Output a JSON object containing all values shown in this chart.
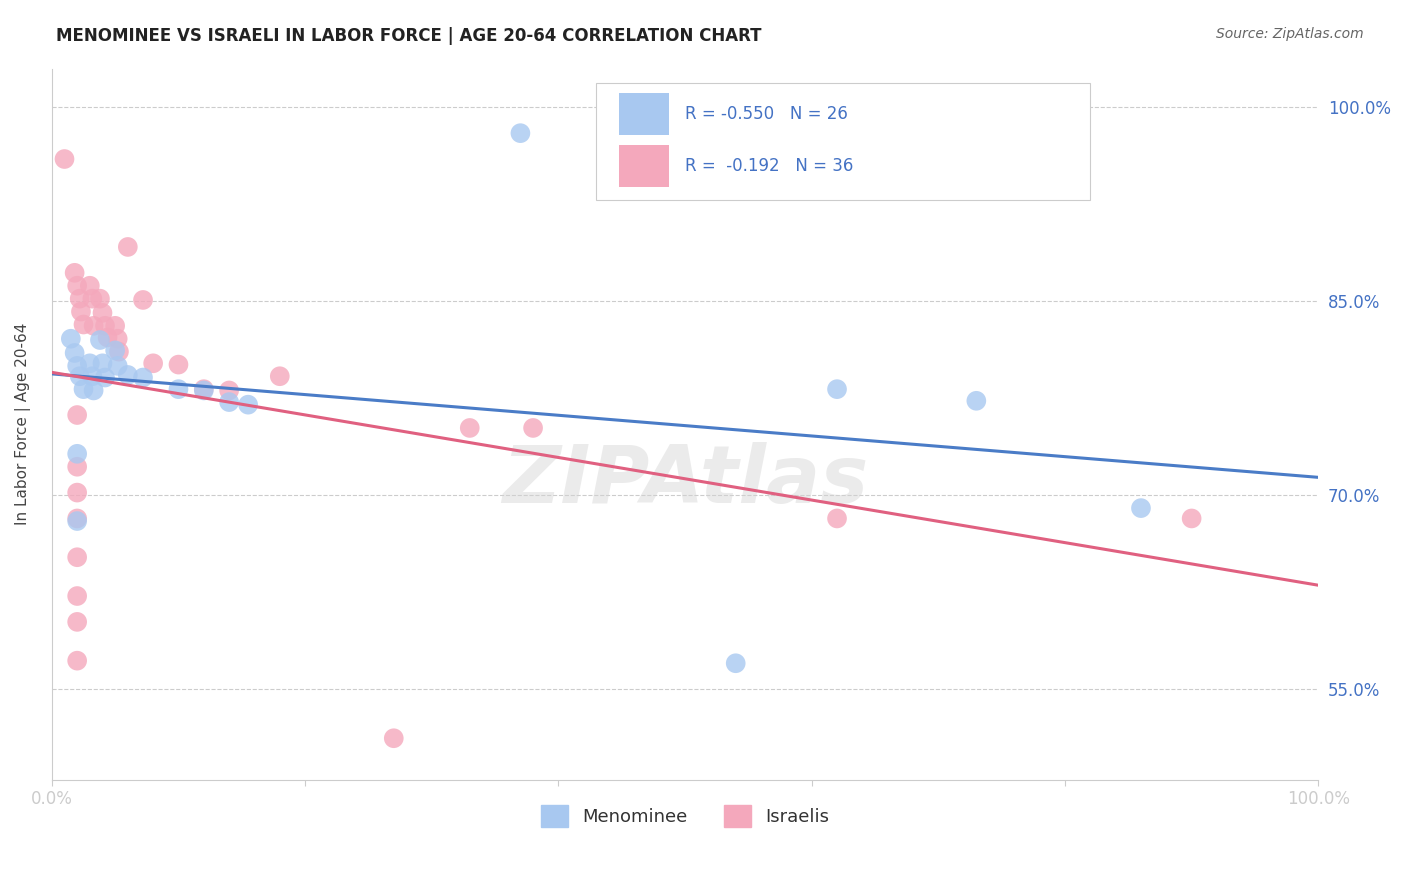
{
  "title": "MENOMINEE VS ISRAELI IN LABOR FORCE | AGE 20-64 CORRELATION CHART",
  "source": "Source: ZipAtlas.com",
  "ylabel": "In Labor Force | Age 20-64",
  "xlim": [
    0.0,
    1.0
  ],
  "ylim": [
    0.48,
    1.03
  ],
  "ytick_labels": [
    "55.0%",
    "70.0%",
    "85.0%",
    "100.0%"
  ],
  "ytick_values": [
    0.55,
    0.7,
    0.85,
    1.0
  ],
  "legend_labels": [
    "Menominee",
    "Israelis"
  ],
  "blue_R": "-0.550",
  "blue_N": "26",
  "pink_R": "-0.192",
  "pink_N": "36",
  "blue_color": "#A8C8F0",
  "pink_color": "#F4A8BC",
  "blue_line_color": "#4A7CC7",
  "pink_line_color": "#E06080",
  "watermark": "ZIPAtlas",
  "blue_points": [
    [
      0.015,
      0.821
    ],
    [
      0.018,
      0.81
    ],
    [
      0.02,
      0.8
    ],
    [
      0.022,
      0.792
    ],
    [
      0.025,
      0.782
    ],
    [
      0.03,
      0.802
    ],
    [
      0.032,
      0.792
    ],
    [
      0.033,
      0.781
    ],
    [
      0.038,
      0.82
    ],
    [
      0.04,
      0.802
    ],
    [
      0.042,
      0.791
    ],
    [
      0.05,
      0.812
    ],
    [
      0.052,
      0.8
    ],
    [
      0.06,
      0.793
    ],
    [
      0.072,
      0.791
    ],
    [
      0.1,
      0.782
    ],
    [
      0.12,
      0.781
    ],
    [
      0.14,
      0.772
    ],
    [
      0.155,
      0.77
    ],
    [
      0.02,
      0.732
    ],
    [
      0.02,
      0.68
    ],
    [
      0.37,
      0.98
    ],
    [
      0.62,
      0.782
    ],
    [
      0.73,
      0.773
    ],
    [
      0.86,
      0.69
    ],
    [
      0.54,
      0.57
    ]
  ],
  "pink_points": [
    [
      0.01,
      0.96
    ],
    [
      0.06,
      0.892
    ],
    [
      0.018,
      0.872
    ],
    [
      0.02,
      0.862
    ],
    [
      0.022,
      0.852
    ],
    [
      0.023,
      0.842
    ],
    [
      0.025,
      0.832
    ],
    [
      0.03,
      0.862
    ],
    [
      0.032,
      0.852
    ],
    [
      0.033,
      0.831
    ],
    [
      0.038,
      0.852
    ],
    [
      0.04,
      0.841
    ],
    [
      0.042,
      0.831
    ],
    [
      0.044,
      0.822
    ],
    [
      0.05,
      0.831
    ],
    [
      0.052,
      0.821
    ],
    [
      0.053,
      0.811
    ],
    [
      0.072,
      0.851
    ],
    [
      0.08,
      0.802
    ],
    [
      0.1,
      0.801
    ],
    [
      0.12,
      0.782
    ],
    [
      0.14,
      0.781
    ],
    [
      0.02,
      0.762
    ],
    [
      0.02,
      0.722
    ],
    [
      0.02,
      0.702
    ],
    [
      0.02,
      0.682
    ],
    [
      0.02,
      0.652
    ],
    [
      0.02,
      0.622
    ],
    [
      0.33,
      0.752
    ],
    [
      0.38,
      0.752
    ],
    [
      0.62,
      0.682
    ],
    [
      0.9,
      0.682
    ],
    [
      0.18,
      0.792
    ],
    [
      0.27,
      0.512
    ],
    [
      0.02,
      0.602
    ],
    [
      0.02,
      0.572
    ]
  ]
}
